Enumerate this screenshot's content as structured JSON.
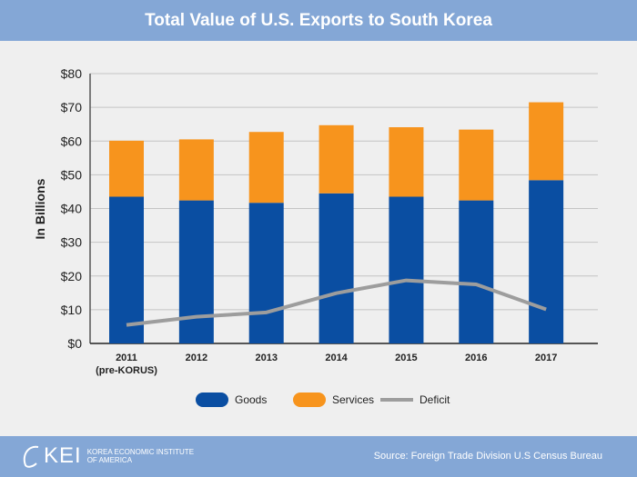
{
  "chart_data": {
    "type": "bar",
    "title": "Total Value of U.S. Exports to South Korea",
    "ylabel": "In Billions",
    "xlabel": "",
    "categories": [
      "2011",
      "2012",
      "2013",
      "2014",
      "2015",
      "2016",
      "2017"
    ],
    "category_sublabels": [
      "(pre-KORUS)",
      "",
      "",
      "",
      "",
      "",
      ""
    ],
    "yticks": [
      "$0",
      "$10",
      "$20",
      "$30",
      "$40",
      "$50",
      "$60",
      "$70",
      "$80"
    ],
    "ylim": [
      0,
      80
    ],
    "stacked": true,
    "grid": true,
    "legend_position": "bottom",
    "series": [
      {
        "name": "Goods",
        "type": "bar",
        "color": "#0a4ea2",
        "values": [
          43.5,
          42.4,
          41.7,
          44.5,
          43.5,
          42.4,
          48.4
        ]
      },
      {
        "name": "Services",
        "type": "bar",
        "color": "#f7941d",
        "values": [
          16.6,
          18.1,
          21.0,
          20.2,
          20.6,
          21.0,
          23.1
        ]
      },
      {
        "name": "Deficit",
        "type": "line",
        "color": "#9d9d9d",
        "values": [
          5.5,
          7.9,
          9.2,
          14.9,
          18.7,
          17.5,
          10.1
        ]
      }
    ]
  },
  "footer": {
    "logo_text": "KEI",
    "org_name_line1": "KOREA ECONOMIC INSTITUTE",
    "org_name_line2": "OF AMERICA",
    "source": "Source: Foreign Trade Division U.S Census Bureau"
  }
}
